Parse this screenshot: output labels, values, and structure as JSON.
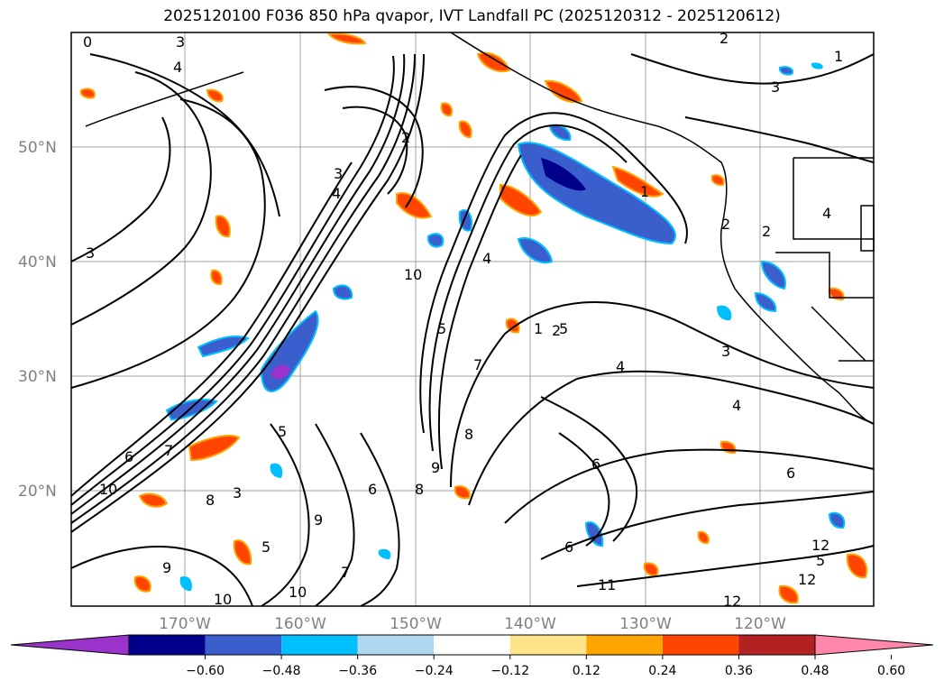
{
  "title": "2025120100 F036 850 hPa qvapor, IVT Landfall PC (2025120312 - 2025120612)",
  "map": {
    "lat_labels": [
      "50°N",
      "40°N",
      "30°N",
      "20°N"
    ],
    "lon_labels": [
      "170°W",
      "160°W",
      "150°W",
      "140°W",
      "130°W",
      "120°W"
    ]
  },
  "contour_labels": [
    "0",
    "1",
    "3",
    "4",
    "2",
    "3",
    "1",
    "2",
    "3",
    "4",
    "3",
    "4",
    "5",
    "10",
    "4",
    "5",
    "6",
    "7",
    "8",
    "9",
    "10",
    "11",
    "12",
    "5",
    "6",
    "7",
    "8",
    "9",
    "10",
    "1",
    "2",
    "3",
    "4",
    "5",
    "6",
    "3",
    "2",
    "2",
    "12",
    "9",
    "6",
    "10",
    "8",
    "7",
    "6",
    "5",
    "4",
    "12"
  ],
  "colorbar": {
    "colors": [
      "#9933cc",
      "#00008b",
      "#3a5fcd",
      "#00bfff",
      "#add8f0",
      "#ffffff",
      "#ffe58a",
      "#ffa500",
      "#ff4500",
      "#b22222",
      "#ff88aa"
    ],
    "tick_labels": [
      "−0.60",
      "−0.48",
      "−0.36",
      "−0.24",
      "−0.12",
      "0.12",
      "0.24",
      "0.36",
      "0.48",
      "0.60"
    ]
  },
  "colors": {
    "contour": "#000000",
    "grid": "#a0a0a0",
    "coast": "#000000",
    "label_gray": "#808080"
  }
}
